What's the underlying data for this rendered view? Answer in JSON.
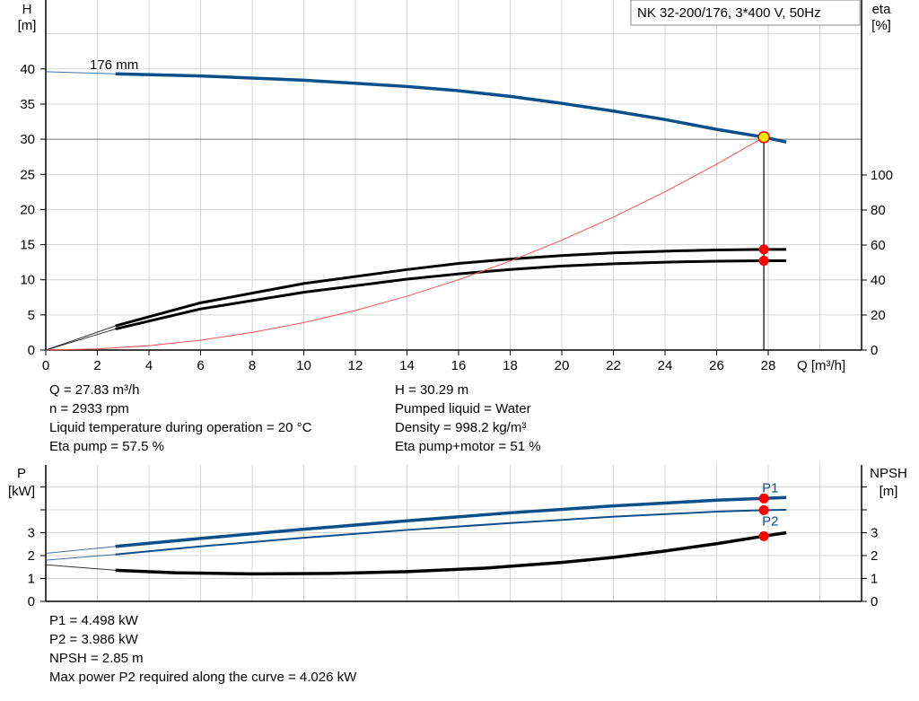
{
  "chart_data": [
    {
      "type": "line",
      "title": "NK 32-200/176, 3*400 V, 50Hz",
      "xlabel": "Q [m³/h]",
      "ylabel_left": [
        "H",
        "[m]"
      ],
      "ylabel_right": [
        "eta",
        "[%]"
      ],
      "xlim": [
        0,
        31.6
      ],
      "ylim_left": [
        0,
        45
      ],
      "ylim_right": [
        0,
        100
      ],
      "x_ticks": [
        0,
        2,
        4,
        6,
        8,
        10,
        12,
        14,
        16,
        18,
        20,
        22,
        24,
        26,
        28
      ],
      "y_ticks_left": [
        0,
        5,
        10,
        15,
        20,
        25,
        30,
        35,
        40
      ],
      "y_ticks_right": [
        0,
        20,
        40,
        60,
        80,
        100
      ],
      "grid": true,
      "curve_label": "176 mm",
      "series": [
        {
          "key": "H",
          "axis": "left",
          "color": "#0b4f8a",
          "x": [
            0,
            2.7,
            6,
            10,
            14,
            16,
            18,
            20,
            22,
            24,
            26,
            27.83,
            28.7
          ],
          "y": [
            39.6,
            39.3,
            39.0,
            38.4,
            37.5,
            36.9,
            36.1,
            35.1,
            34.0,
            32.8,
            31.4,
            30.29,
            29.6
          ]
        },
        {
          "key": "eta_pump",
          "axis": "right",
          "color": "#000000",
          "x": [
            0,
            2.7,
            6,
            10,
            14,
            16,
            18,
            20,
            22,
            24,
            26,
            27.83,
            28.7
          ],
          "y": [
            0,
            13.8,
            27,
            38,
            46,
            49.5,
            52,
            54,
            55.5,
            56.5,
            57.2,
            57.5,
            57.5
          ]
        },
        {
          "key": "eta_pump_motor",
          "axis": "right",
          "color": "#000000",
          "x": [
            0,
            2.7,
            6,
            10,
            14,
            16,
            18,
            20,
            22,
            24,
            26,
            27.83,
            28.7
          ],
          "y": [
            0,
            12,
            23.5,
            33,
            40.5,
            43.5,
            46,
            48,
            49.3,
            50.2,
            50.8,
            51,
            51
          ]
        },
        {
          "key": "system",
          "axis": "left",
          "color": "#ff5050",
          "x": [
            0,
            2,
            4,
            6,
            8,
            10,
            12,
            14,
            16,
            18,
            20,
            22,
            24,
            26,
            27.83
          ],
          "y": [
            0,
            0.16,
            0.63,
            1.41,
            2.5,
            3.91,
            5.63,
            7.67,
            10.01,
            12.67,
            15.64,
            18.93,
            22.52,
            26.44,
            30.29
          ]
        }
      ],
      "duty_point": {
        "q": 27.83,
        "h": 30.29,
        "eta_pump": 57.5,
        "eta_pump_motor": 51
      }
    },
    {
      "type": "line",
      "ylabel_left": [
        "P",
        "[kW]"
      ],
      "ylabel_right": [
        "NPSH",
        "[m]"
      ],
      "xlim": [
        0,
        31.6
      ],
      "ylim": [
        0,
        6
      ],
      "y_ticks_labeled": [
        0,
        1,
        2,
        3
      ],
      "y_ticks": [
        0,
        1,
        2,
        3,
        4,
        5
      ],
      "grid": true,
      "series": [
        {
          "name": "P1",
          "color": "#0b4f8a",
          "x": [
            0,
            2.7,
            6,
            10,
            14,
            18,
            22,
            26,
            27.83,
            28.7
          ],
          "y": [
            2.1,
            2.4,
            2.75,
            3.15,
            3.52,
            3.87,
            4.17,
            4.42,
            4.498,
            4.54
          ]
        },
        {
          "name": "P2",
          "color": "#0b4f8a",
          "x": [
            0,
            2.7,
            6,
            10,
            14,
            18,
            22,
            26,
            27.83,
            28.7
          ],
          "y": [
            1.8,
            2.05,
            2.4,
            2.78,
            3.12,
            3.42,
            3.7,
            3.92,
            3.986,
            4.0
          ]
        },
        {
          "key": "NPSH",
          "color": "#000000",
          "x": [
            0,
            2.7,
            5,
            8,
            11,
            14,
            17,
            20,
            22,
            24,
            26,
            27.83,
            28.7
          ],
          "y": [
            1.6,
            1.36,
            1.25,
            1.2,
            1.22,
            1.3,
            1.45,
            1.7,
            1.92,
            2.2,
            2.52,
            2.85,
            3.0
          ]
        }
      ],
      "duty_values": {
        "P1": 4.498,
        "P2": 3.986,
        "NPSH": 2.85
      }
    }
  ],
  "info_top_left": [
    "Q = 27.83 m³/h",
    "n = 2933 rpm",
    "Liquid temperature during operation = 20 °C",
    "Eta pump = 57.5 %"
  ],
  "info_top_right": [
    "H = 30.29 m",
    "Pumped liquid = Water",
    "Density = 998.2 kg/m³",
    "Eta pump+motor = 51 %"
  ],
  "info_bottom": [
    "P1 = 4.498 kW",
    "P2 = 3.986 kW",
    "NPSH = 2.85 m",
    "Max power P2 required along the curve = 4.026 kW"
  ]
}
